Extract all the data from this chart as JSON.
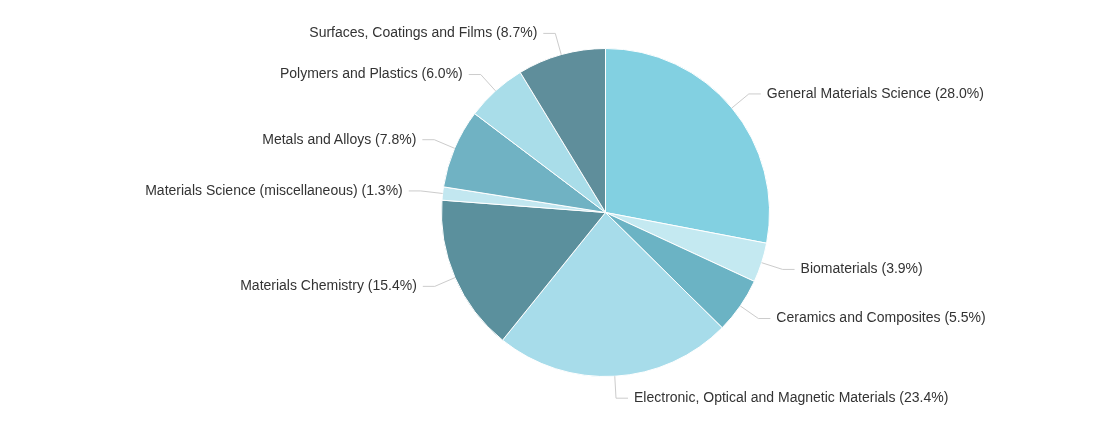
{
  "chart_data": {
    "type": "pie",
    "categories": [
      "General Materials Science",
      "Biomaterials",
      "Ceramics and Composites",
      "Electronic, Optical and Magnetic Materials",
      "Materials Chemistry",
      "Materials Science (miscellaneous)",
      "Metals and Alloys",
      "Polymers and Plastics",
      "Surfaces, Coatings and Films"
    ],
    "values": [
      28.0,
      3.9,
      5.5,
      23.4,
      15.4,
      1.3,
      7.8,
      6.0,
      8.7
    ],
    "value_labels": [
      "(28.0%)",
      "(3.9%)",
      "(5.5%)",
      "(23.4%)",
      "(15.4%)",
      "(1.3%)",
      "(7.8%)",
      "(6.0%)",
      "(8.7%)"
    ],
    "colors": [
      "#82d0e1",
      "#c4e9f1",
      "#6bb3c4",
      "#a7dcea",
      "#5b909d",
      "#c2e7f0",
      "#70b2c3",
      "#a9dde9",
      "#5f8e9b"
    ],
    "legend": false
  }
}
